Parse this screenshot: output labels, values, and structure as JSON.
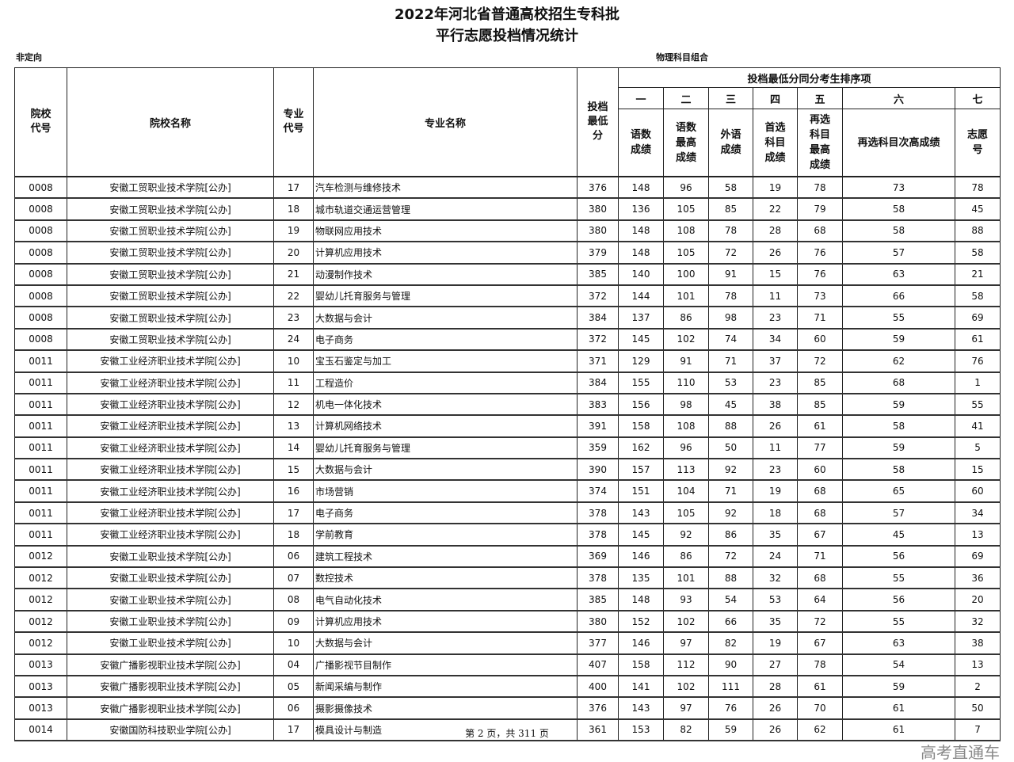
{
  "title": "2022年河北省普通高校招生专科批",
  "subtitle": "平行志愿投档情况统计",
  "left_label": "非定向",
  "right_label": "物理科目组合",
  "headers": {
    "school_code": "院校代号",
    "school_name": "院校名称",
    "major_code": "专业代号",
    "major_name": "专业名称",
    "min_score": "投档最低分",
    "sort_group": "投档最低分同分考生排序项",
    "ordinals": [
      "一",
      "二",
      "三",
      "四",
      "五",
      "六",
      "七"
    ],
    "sort_items": [
      "语数成绩",
      "语数最高成绩",
      "外语成绩",
      "首选科目成绩",
      "再选科目最高成绩",
      "再选科目次高成绩",
      "志愿号"
    ]
  },
  "rows": [
    [
      "0008",
      "安徽工贸职业技术学院[公办]",
      "17",
      "汽车检测与维修技术",
      "376",
      "148",
      "96",
      "58",
      "19",
      "78",
      "73",
      "78"
    ],
    [
      "0008",
      "安徽工贸职业技术学院[公办]",
      "18",
      "城市轨道交通运营管理",
      "380",
      "136",
      "105",
      "85",
      "22",
      "79",
      "58",
      "45"
    ],
    [
      "0008",
      "安徽工贸职业技术学院[公办]",
      "19",
      "物联网应用技术",
      "380",
      "148",
      "108",
      "78",
      "28",
      "68",
      "58",
      "88"
    ],
    [
      "0008",
      "安徽工贸职业技术学院[公办]",
      "20",
      "计算机应用技术",
      "379",
      "148",
      "105",
      "72",
      "26",
      "76",
      "57",
      "58"
    ],
    [
      "0008",
      "安徽工贸职业技术学院[公办]",
      "21",
      "动漫制作技术",
      "385",
      "140",
      "100",
      "91",
      "15",
      "76",
      "63",
      "21"
    ],
    [
      "0008",
      "安徽工贸职业技术学院[公办]",
      "22",
      "婴幼儿托育服务与管理",
      "372",
      "144",
      "101",
      "78",
      "11",
      "73",
      "66",
      "58"
    ],
    [
      "0008",
      "安徽工贸职业技术学院[公办]",
      "23",
      "大数据与会计",
      "384",
      "137",
      "86",
      "98",
      "23",
      "71",
      "55",
      "69"
    ],
    [
      "0008",
      "安徽工贸职业技术学院[公办]",
      "24",
      "电子商务",
      "372",
      "145",
      "102",
      "74",
      "34",
      "60",
      "59",
      "61"
    ],
    [
      "0011",
      "安徽工业经济职业技术学院[公办]",
      "10",
      "宝玉石鉴定与加工",
      "371",
      "129",
      "91",
      "71",
      "37",
      "72",
      "62",
      "76"
    ],
    [
      "0011",
      "安徽工业经济职业技术学院[公办]",
      "11",
      "工程造价",
      "384",
      "155",
      "110",
      "53",
      "23",
      "85",
      "68",
      "1"
    ],
    [
      "0011",
      "安徽工业经济职业技术学院[公办]",
      "12",
      "机电一体化技术",
      "383",
      "156",
      "98",
      "45",
      "38",
      "85",
      "59",
      "55"
    ],
    [
      "0011",
      "安徽工业经济职业技术学院[公办]",
      "13",
      "计算机网络技术",
      "391",
      "158",
      "108",
      "88",
      "26",
      "61",
      "58",
      "41"
    ],
    [
      "0011",
      "安徽工业经济职业技术学院[公办]",
      "14",
      "婴幼儿托育服务与管理",
      "359",
      "162",
      "96",
      "50",
      "11",
      "77",
      "59",
      "5"
    ],
    [
      "0011",
      "安徽工业经济职业技术学院[公办]",
      "15",
      "大数据与会计",
      "390",
      "157",
      "113",
      "92",
      "23",
      "60",
      "58",
      "15"
    ],
    [
      "0011",
      "安徽工业经济职业技术学院[公办]",
      "16",
      "市场营销",
      "374",
      "151",
      "104",
      "71",
      "19",
      "68",
      "65",
      "60"
    ],
    [
      "0011",
      "安徽工业经济职业技术学院[公办]",
      "17",
      "电子商务",
      "378",
      "143",
      "105",
      "92",
      "18",
      "68",
      "57",
      "34"
    ],
    [
      "0011",
      "安徽工业经济职业技术学院[公办]",
      "18",
      "学前教育",
      "378",
      "145",
      "92",
      "86",
      "35",
      "67",
      "45",
      "13"
    ],
    [
      "0012",
      "安徽工业职业技术学院[公办]",
      "06",
      "建筑工程技术",
      "369",
      "146",
      "86",
      "72",
      "24",
      "71",
      "56",
      "69"
    ],
    [
      "0012",
      "安徽工业职业技术学院[公办]",
      "07",
      "数控技术",
      "378",
      "135",
      "101",
      "88",
      "32",
      "68",
      "55",
      "36"
    ],
    [
      "0012",
      "安徽工业职业技术学院[公办]",
      "08",
      "电气自动化技术",
      "385",
      "148",
      "93",
      "54",
      "53",
      "64",
      "56",
      "20"
    ],
    [
      "0012",
      "安徽工业职业技术学院[公办]",
      "09",
      "计算机应用技术",
      "380",
      "152",
      "102",
      "66",
      "35",
      "72",
      "55",
      "32"
    ],
    [
      "0012",
      "安徽工业职业技术学院[公办]",
      "10",
      "大数据与会计",
      "377",
      "146",
      "97",
      "82",
      "19",
      "67",
      "63",
      "38"
    ],
    [
      "0013",
      "安徽广播影视职业技术学院[公办]",
      "04",
      "广播影视节目制作",
      "407",
      "158",
      "112",
      "90",
      "27",
      "78",
      "54",
      "13"
    ],
    [
      "0013",
      "安徽广播影视职业技术学院[公办]",
      "05",
      "新闻采编与制作",
      "400",
      "141",
      "102",
      "111",
      "28",
      "61",
      "59",
      "2"
    ],
    [
      "0013",
      "安徽广播影视职业技术学院[公办]",
      "06",
      "摄影摄像技术",
      "376",
      "143",
      "97",
      "76",
      "26",
      "70",
      "61",
      "50"
    ],
    [
      "0014",
      "安徽国防科技职业学院[公办]",
      "17",
      "模具设计与制造",
      "361",
      "153",
      "82",
      "59",
      "26",
      "62",
      "61",
      "7"
    ]
  ],
  "footer": "第 2 页，共 311 页",
  "watermark": "高考直通车"
}
